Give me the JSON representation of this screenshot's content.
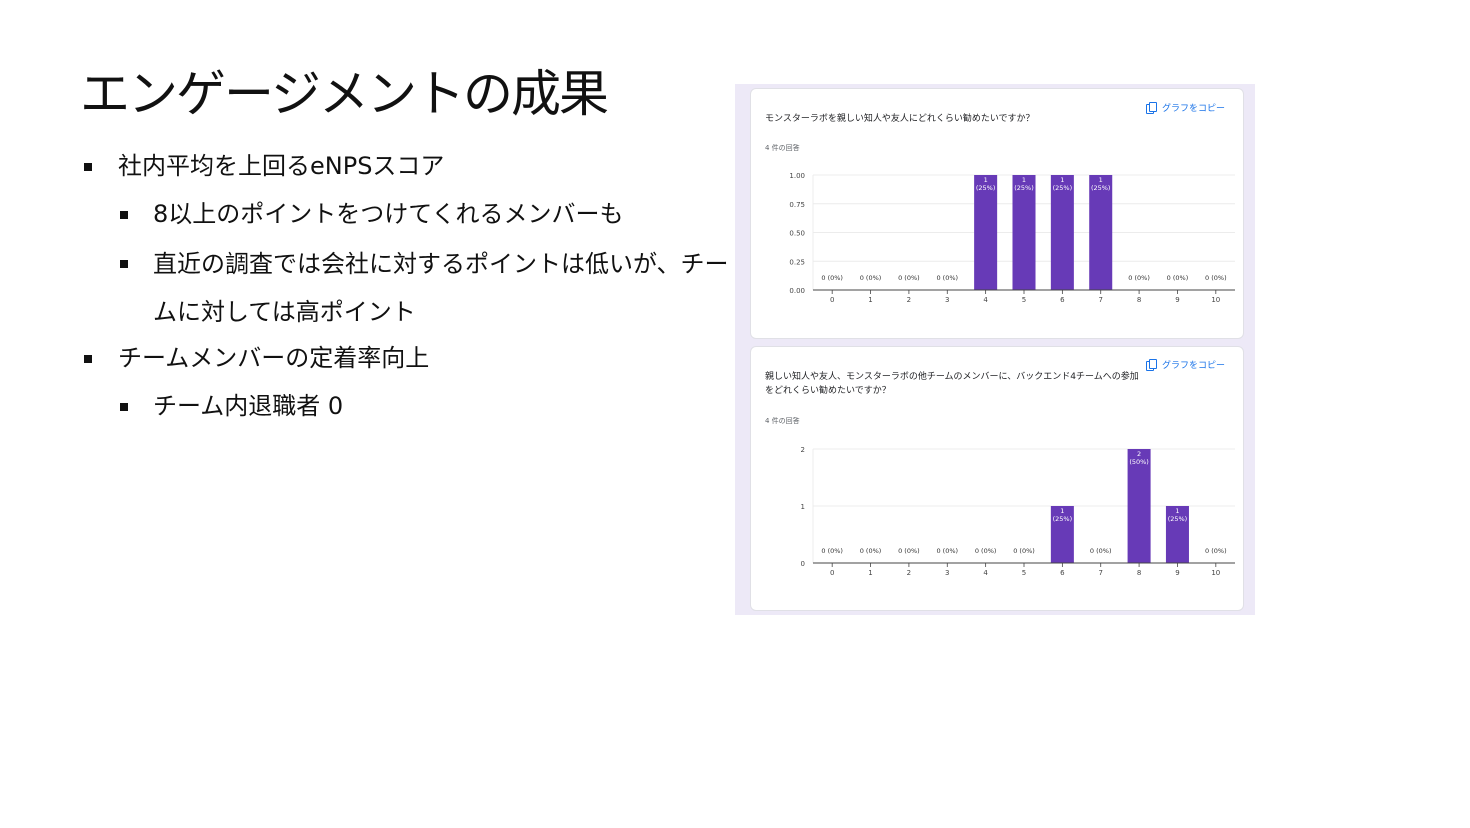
{
  "slide": {
    "title": "エンゲージメントの成果",
    "bullets": [
      {
        "level": 1,
        "text": "社内平均を上回るeNPSスコア"
      },
      {
        "level": 2,
        "text": "8以上のポイントをつけてくれるメンバーも"
      },
      {
        "level": 2,
        "text": "直近の調査では会社に対するポイントは低いが、チームに対しては高ポイント"
      },
      {
        "level": 1,
        "text": "チームメンバーの定着率向上"
      },
      {
        "level": 2,
        "text": "チーム内退職者 0"
      }
    ]
  },
  "form": {
    "accent_color": "#673ab7",
    "copy_icon": "copy-icon",
    "copy_label": "グラフをコピー",
    "cards": [
      {
        "question": "モンスターラボを親しい知人や友人にどれくらい勧めたいですか？",
        "responses": "4 件の回答"
      },
      {
        "question": "親しい知人や友人、モンスターラボの他チームのメンバーに、バックエンド4チームへの参加をどれくらい勧めたいですか？",
        "responses": "4 件の回答"
      }
    ]
  },
  "chart_data": [
    {
      "type": "bar",
      "categories": [
        "0",
        "1",
        "2",
        "3",
        "4",
        "5",
        "6",
        "7",
        "8",
        "9",
        "10"
      ],
      "values": [
        0,
        0,
        0,
        0,
        1,
        1,
        1,
        1,
        0,
        0,
        0
      ],
      "labels": [
        "0 (0%)",
        "0 (0%)",
        "0 (0%)",
        "0 (0%)",
        "1\n(25%)",
        "1\n(25%)",
        "1\n(25%)",
        "1\n(25%)",
        "0 (0%)",
        "0 (0%)",
        "0 (0%)"
      ],
      "yticks": [
        "0.00",
        "0.25",
        "0.50",
        "0.75",
        "1.00"
      ],
      "ylim": [
        0,
        1
      ],
      "color": "#673ab7",
      "grid": true
    },
    {
      "type": "bar",
      "categories": [
        "0",
        "1",
        "2",
        "3",
        "4",
        "5",
        "6",
        "7",
        "8",
        "9",
        "10"
      ],
      "values": [
        0,
        0,
        0,
        0,
        0,
        0,
        1,
        0,
        2,
        1,
        0
      ],
      "labels": [
        "0 (0%)",
        "0 (0%)",
        "0 (0%)",
        "0 (0%)",
        "0 (0%)",
        "0 (0%)",
        "1\n(25%)",
        "0 (0%)",
        "2\n(50%)",
        "1\n(25%)",
        "0 (0%)"
      ],
      "yticks": [
        "0",
        "1",
        "2"
      ],
      "ylim": [
        0,
        2
      ],
      "color": "#673ab7",
      "grid": true
    }
  ]
}
